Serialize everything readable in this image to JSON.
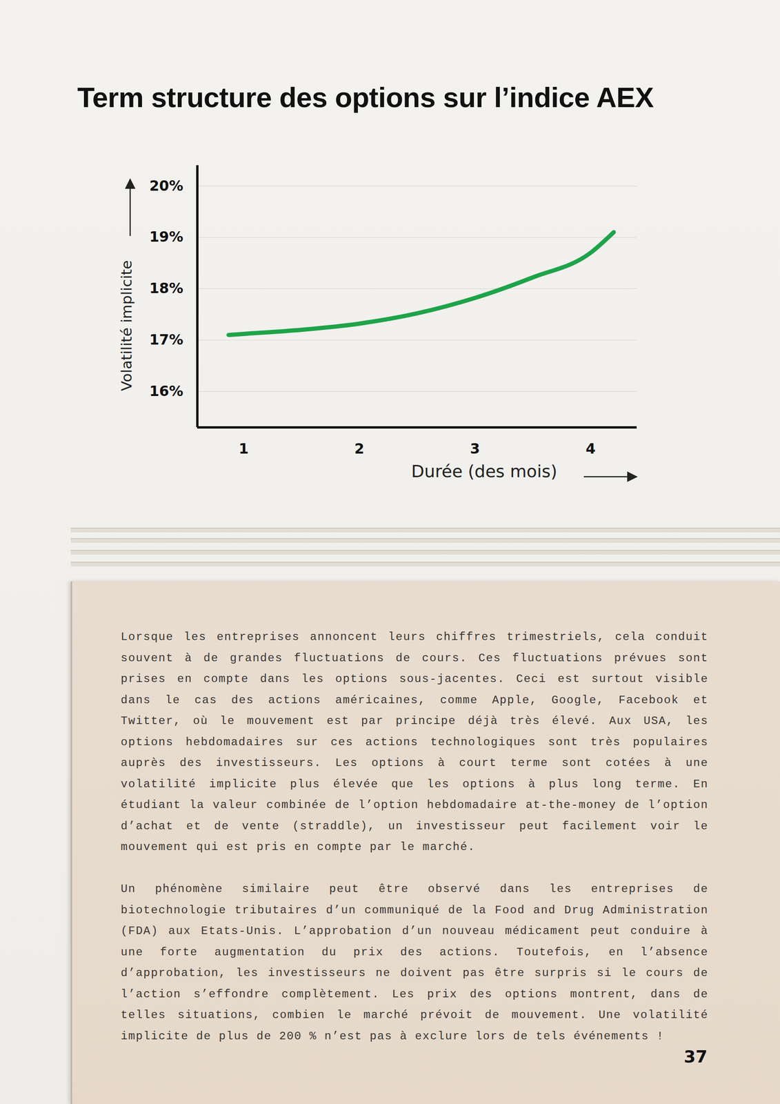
{
  "chart_data": {
    "type": "line",
    "title": "Term structure des options sur l’indice AEX",
    "x_label": "Durée (des mois)",
    "y_label": "Volatilité implicite",
    "x": [
      0.87,
      1,
      1.5,
      2,
      2.5,
      3,
      3.5,
      4,
      4.2
    ],
    "values": [
      17.1,
      17.12,
      17.2,
      17.32,
      17.52,
      17.82,
      18.22,
      18.7,
      19.1
    ],
    "color": "#1fa34a",
    "line_style": "solid",
    "xlim": [
      0.6,
      4.4
    ],
    "xticks": [
      1,
      2,
      3,
      4
    ],
    "ylim": [
      15.3,
      20.4
    ],
    "yticks": [
      {
        "value": 16,
        "label": "16%"
      },
      {
        "value": 17,
        "label": "17%"
      },
      {
        "value": 18,
        "label": "18%"
      },
      {
        "value": 19,
        "label": "19%"
      },
      {
        "value": 20,
        "label": "20%"
      }
    ],
    "grid": true
  },
  "page": {
    "paragraphs": [
      "Lorsque les entreprises annoncent leurs chiffres trimestriels, cela conduit souvent à de grandes fluctuations de cours. Ces fluctuations prévues sont prises en compte dans les options sous-jacentes. Ceci est surtout visible dans le cas des actions américaines, comme Apple, Google, Facebook et Twitter, où le mouvement est par principe déjà très élevé. Aux USA, les options hebdomadaires sur ces actions technologiques sont très populaires auprès des investisseurs. Les options à court terme sont cotées à une volatilité implicite plus élevée que les options à plus long terme. En étudiant la valeur combinée de l’option hebdomadaire at-the-money de l’option d’achat et de vente (straddle), un investisseur peut facilement voir le mouvement qui est pris en compte par le marché.",
      "Un phénomène similaire peut être observé dans les entreprises de biotechnologie tributaires d’un communiqué de la Food and Drug Administration (FDA) aux Etats-Unis. L’approbation d’un nouveau médicament peut conduire à une forte augmentation du prix des actions. Toutefois, en l’absence d’approbation, les investisseurs ne doivent pas être surpris si le cours de l’action s’effondre complètement. Les prix des options montrent, dans de telles situations, combien le marché prévoit de mouvement. Une volatilité implicite de plus de 200 % n’est pas à exclure lors de tels événements !"
    ],
    "page_number": 37
  }
}
